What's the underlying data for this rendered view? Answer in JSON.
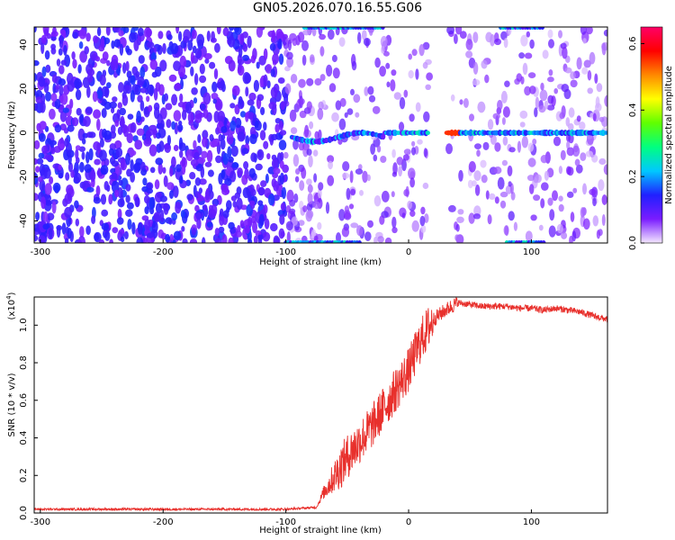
{
  "figure": {
    "title": "GN05.2026.070.16.55.G06"
  },
  "chart_data": [
    {
      "type": "heatmap",
      "xlabel": "Height of straight line (km)",
      "ylabel": "Frequency (Hz)",
      "xlim": [
        -305,
        162
      ],
      "ylim": [
        -50,
        48
      ],
      "x_ticks": [
        -300,
        -200,
        -100,
        0,
        100
      ],
      "y_ticks": [
        -40,
        -20,
        0,
        20,
        40
      ],
      "colorbar": {
        "label": "Normalized spectral amplitude",
        "range": [
          0.0,
          0.65
        ],
        "ticks": [
          "0.0",
          "0.2",
          "0.4",
          "0.6"
        ],
        "colormap": [
          "#f4e8ff",
          "#7a1cff",
          "#2020ff",
          "#00c8ff",
          "#00ff80",
          "#60ff00",
          "#ffff00",
          "#ff8800",
          "#ff0000",
          "#ff0066"
        ]
      },
      "description_values": {
        "noise_dominant_below_height_km": -100,
        "signal_frequency_hz": 0,
        "data_gap_km": [
          17,
          31
        ]
      }
    },
    {
      "type": "line",
      "xlabel": "Height of straight line (km)",
      "ylabel": "SNR (10 * v/v)",
      "y_multiplier_label": "(x10",
      "y_multiplier_exp": "4",
      "y_multiplier_close": ")",
      "xlim": [
        -305,
        162
      ],
      "ylim": [
        0,
        1.15
      ],
      "x_ticks": [
        -300,
        -200,
        -100,
        0,
        100
      ],
      "y_ticks": [
        "0.0",
        "0.2",
        "0.4",
        "0.6",
        "0.8",
        "1.0"
      ],
      "line_color": "#e8302c",
      "series": [
        {
          "x": [
            -305,
            -250,
            -200,
            -150,
            -100,
            -75,
            -70,
            -60,
            -50,
            -40,
            -30,
            -20,
            -10,
            0,
            10,
            20,
            30,
            40,
            50,
            60,
            70,
            80,
            90,
            100,
            110,
            120,
            130,
            140,
            150,
            162
          ],
          "y": [
            0.02,
            0.02,
            0.02,
            0.02,
            0.02,
            0.03,
            0.1,
            0.2,
            0.3,
            0.38,
            0.46,
            0.56,
            0.66,
            0.76,
            0.92,
            1.03,
            1.08,
            1.12,
            1.11,
            1.1,
            1.1,
            1.1,
            1.09,
            1.09,
            1.08,
            1.09,
            1.08,
            1.07,
            1.05,
            1.03
          ]
        }
      ]
    }
  ]
}
